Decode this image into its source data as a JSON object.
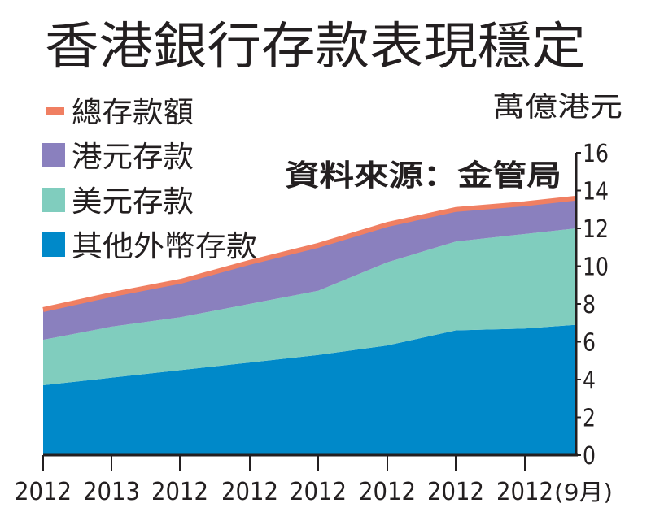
{
  "chart_data": {
    "type": "area",
    "stacked": true,
    "title": "香港銀行存款表現穩定",
    "unit_label": "萬億港元",
    "source": "資料來源：金管局",
    "x_tick_labels": [
      "2012",
      "2013",
      "2012",
      "2012",
      "2012",
      "2012",
      "2012",
      "2012"
    ],
    "x_end_label": "(9月)",
    "x": [
      0,
      1,
      2,
      3,
      4,
      5,
      6,
      7,
      7.75
    ],
    "ylim": [
      0,
      16
    ],
    "y_ticks": [
      0,
      2,
      4,
      6,
      8,
      10,
      12,
      14,
      16
    ],
    "y_axis_side": "right",
    "grid": false,
    "legend_position": "top-left",
    "series": [
      {
        "name": "其他外幣存款",
        "color": "#0089c9",
        "values": [
          3.7,
          4.1,
          4.5,
          4.9,
          5.3,
          5.8,
          6.6,
          6.7,
          6.9
        ]
      },
      {
        "name": "美元存款",
        "color": "#80cdbe",
        "values": [
          2.4,
          2.7,
          2.8,
          3.1,
          3.4,
          4.4,
          4.7,
          5.0,
          5.1
        ]
      },
      {
        "name": "港元存款",
        "color": "#8a80be",
        "values": [
          1.6,
          1.7,
          1.9,
          2.2,
          2.4,
          2.0,
          1.7,
          1.6,
          1.6
        ]
      }
    ],
    "total": {
      "name": "總存款額",
      "color": "#f07f62",
      "values": [
        7.7,
        8.5,
        9.2,
        10.2,
        11.1,
        12.2,
        13.0,
        13.3,
        13.6
      ]
    },
    "legend_order": [
      "總存款額",
      "港元存款",
      "美元存款",
      "其他外幣存款"
    ]
  }
}
